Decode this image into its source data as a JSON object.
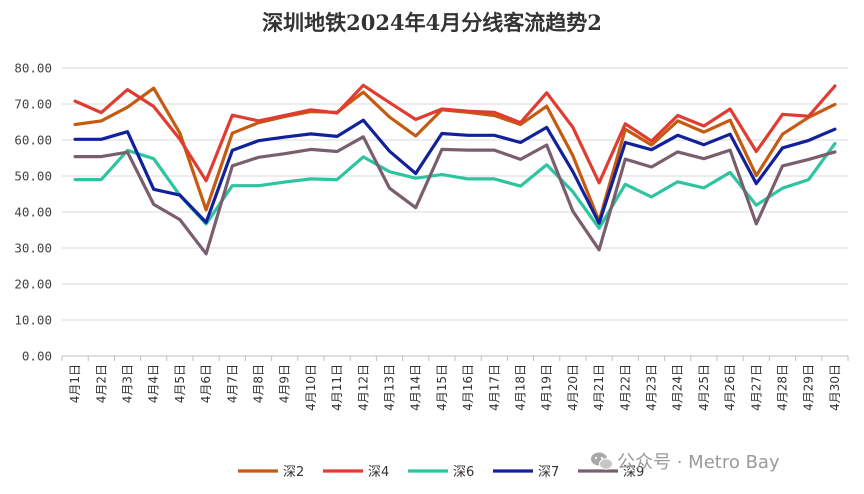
{
  "chart_data": {
    "type": "line",
    "title": "深圳地铁2024年4月分线客流趋势2",
    "xlabel": "",
    "ylabel": "",
    "ylim": [
      0,
      80
    ],
    "yticks": [
      "0.00",
      "10.00",
      "20.00",
      "30.00",
      "40.00",
      "50.00",
      "60.00",
      "70.00",
      "80.00"
    ],
    "categories": [
      "4月1日",
      "4月2日",
      "4月3日",
      "4月4日",
      "4月5日",
      "4月6日",
      "4月7日",
      "4月8日",
      "4月9日",
      "4月10日",
      "4月11日",
      "4月12日",
      "4月13日",
      "4月14日",
      "4月15日",
      "4月16日",
      "4月17日",
      "4月18日",
      "4月19日",
      "4月20日",
      "4月21日",
      "4月22日",
      "4月23日",
      "4月24日",
      "4月25日",
      "4月26日",
      "4月27日",
      "4月28日",
      "4月29日",
      "4月30日"
    ],
    "grid": "horizontal",
    "legend_position": "bottom",
    "series": [
      {
        "name": "深2",
        "color": "#C55A11",
        "values": [
          64.3,
          65.3,
          69.1,
          74.4,
          61.9,
          40.6,
          61.9,
          64.8,
          66.5,
          67.9,
          67.7,
          73.3,
          66.4,
          61.1,
          68.4,
          67.7,
          66.8,
          64.3,
          69.4,
          55.6,
          37.5,
          63.0,
          58.6,
          65.3,
          62.2,
          65.5,
          50.1,
          61.6,
          66.3,
          69.9
        ]
      },
      {
        "name": "深4",
        "color": "#E03C31",
        "values": [
          70.8,
          67.6,
          74.0,
          69.3,
          60.2,
          48.7,
          66.9,
          65.3,
          66.8,
          68.4,
          67.5,
          75.2,
          70.4,
          65.7,
          68.6,
          68.0,
          67.7,
          64.8,
          73.1,
          63.5,
          48.1,
          64.5,
          59.7,
          66.8,
          63.9,
          68.6,
          56.8,
          67.1,
          66.6,
          75.0
        ]
      },
      {
        "name": "深6",
        "color": "#2EC4A0",
        "values": [
          49.0,
          49.0,
          57.1,
          54.8,
          44.6,
          36.7,
          47.3,
          47.3,
          48.3,
          49.2,
          49.0,
          55.3,
          51.2,
          49.4,
          50.4,
          49.2,
          49.2,
          47.2,
          53.1,
          45.6,
          35.5,
          47.7,
          44.2,
          48.4,
          46.7,
          51.0,
          41.9,
          46.6,
          49.0,
          59.0
        ]
      },
      {
        "name": "深7",
        "color": "#10219B",
        "values": [
          60.2,
          60.2,
          62.3,
          46.3,
          44.7,
          37.1,
          57.1,
          59.8,
          60.8,
          61.7,
          61.0,
          65.5,
          56.9,
          50.7,
          61.8,
          61.3,
          61.3,
          59.3,
          63.5,
          51.2,
          36.9,
          59.3,
          57.3,
          61.3,
          58.7,
          61.6,
          47.9,
          57.8,
          59.9,
          63.0
        ]
      },
      {
        "name": "深9",
        "color": "#7B5E6E",
        "values": [
          55.4,
          55.4,
          56.6,
          42.1,
          37.9,
          28.4,
          52.8,
          55.2,
          56.2,
          57.4,
          56.8,
          60.9,
          46.6,
          41.2,
          57.4,
          57.2,
          57.2,
          54.6,
          58.6,
          40.2,
          29.5,
          54.7,
          52.5,
          56.7,
          54.8,
          57.2,
          36.7,
          52.8,
          54.6,
          56.7
        ]
      }
    ]
  },
  "watermark": "公众号 · Metro Bay"
}
